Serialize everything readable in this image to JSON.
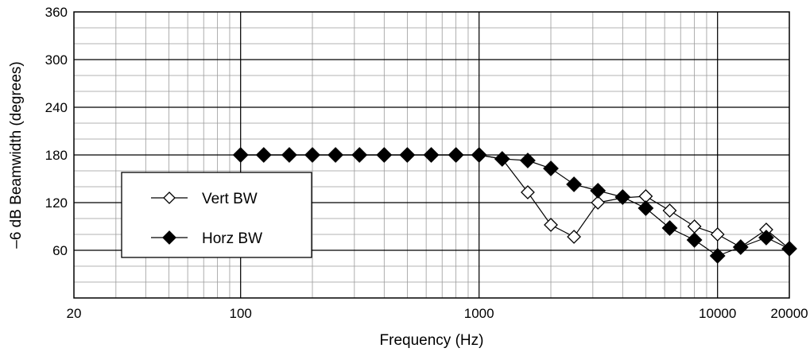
{
  "chart_data": {
    "type": "line",
    "xscale": "log",
    "xlim": [
      20,
      20000
    ],
    "ylim": [
      0,
      360
    ],
    "xlabel": "Frequency (Hz)",
    "ylabel": "–6 dB Beamwidth (degrees)",
    "xtick_labels": [
      "20",
      "100",
      "1000",
      "10000",
      "20000"
    ],
    "xticks": [
      20,
      100,
      1000,
      10000,
      20000
    ],
    "ytick_labels": [
      "60",
      "120",
      "180",
      "240",
      "300",
      "360"
    ],
    "yticks": [
      60,
      120,
      180,
      240,
      300,
      360
    ],
    "grid": true,
    "legend_position": "left-middle",
    "x": [
      100,
      125,
      160,
      200,
      250,
      315,
      400,
      500,
      630,
      800,
      1000,
      1250,
      1600,
      2000,
      2500,
      3150,
      4000,
      5000,
      6300,
      8000,
      10000,
      12500,
      16000,
      20000
    ],
    "series": [
      {
        "name": "Vert BW",
        "marker": "open-diamond",
        "color": "#000000",
        "values": [
          180,
          180,
          180,
          180,
          180,
          180,
          180,
          180,
          180,
          180,
          180,
          175,
          133,
          92,
          77,
          120,
          126,
          128,
          110,
          90,
          80,
          64,
          86,
          62
        ]
      },
      {
        "name": "Horz BW",
        "marker": "filled-diamond",
        "color": "#000000",
        "values": [
          180,
          180,
          180,
          180,
          180,
          180,
          180,
          180,
          180,
          180,
          180,
          175,
          173,
          163,
          143,
          135,
          127,
          113,
          88,
          73,
          53,
          64,
          76,
          62
        ]
      }
    ]
  }
}
